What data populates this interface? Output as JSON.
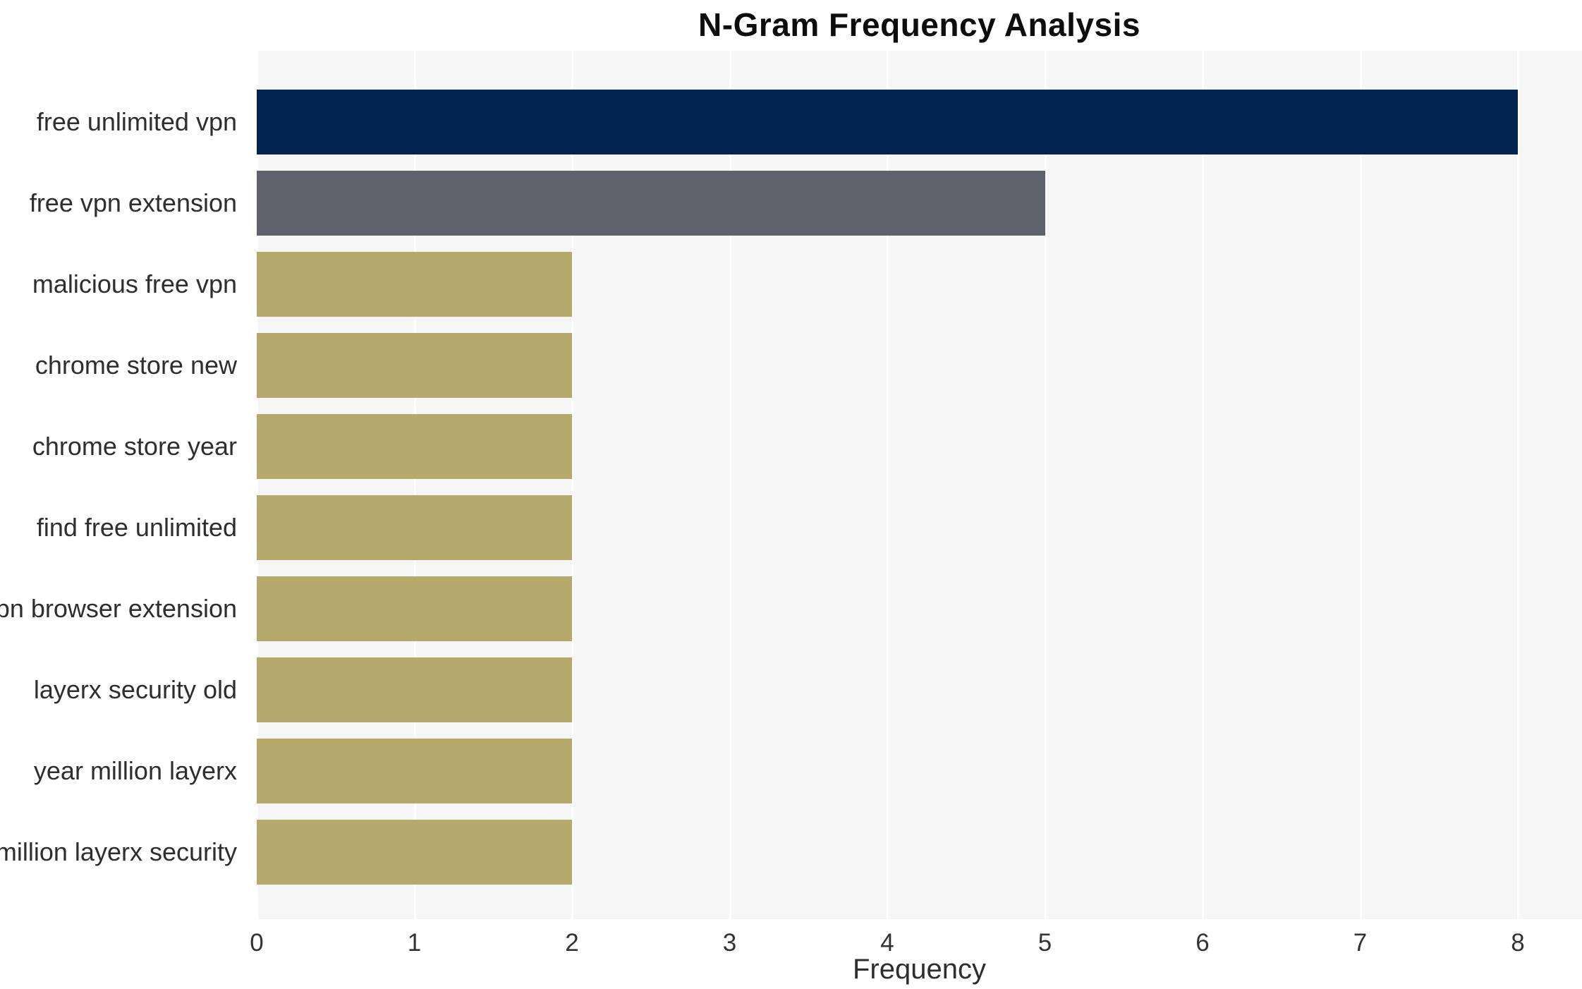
{
  "chart_data": {
    "type": "bar",
    "orientation": "horizontal",
    "title": "N-Gram Frequency Analysis",
    "xlabel": "Frequency",
    "ylabel": "",
    "categories": [
      "free unlimited vpn",
      "free vpn extension",
      "malicious free vpn",
      "chrome store new",
      "chrome store year",
      "find free unlimited",
      "vpn browser extension",
      "layerx security old",
      "year million layerx",
      "million layerx security"
    ],
    "values": [
      8,
      5,
      2,
      2,
      2,
      2,
      2,
      2,
      2,
      2
    ],
    "bar_colors": [
      "#022450",
      "#5f626d",
      "#b5aa6b",
      "#b5aa6b",
      "#b5aa6b",
      "#b5aa6b",
      "#b5aa6b",
      "#b5aa6b",
      "#b5aa6b",
      "#b5aa6b"
    ],
    "xlim": [
      0,
      8
    ],
    "xticks": [
      "0",
      "1",
      "2",
      "3",
      "4",
      "5",
      "6",
      "7",
      "8"
    ],
    "grid": "vertical white gridlines",
    "legend": "none",
    "colors": {
      "plot_background": "#f6f6f7",
      "gridline": "#ffffff",
      "title_text": "#0d0d0d",
      "tick_text": "#333333",
      "label_text": "#2e2e2e",
      "page_background": "#ffffff"
    }
  }
}
